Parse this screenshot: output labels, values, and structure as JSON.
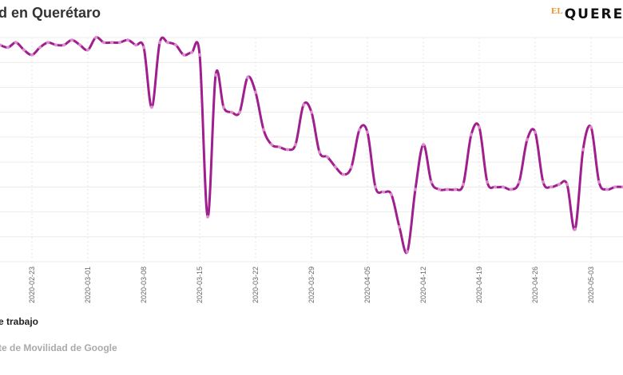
{
  "header": {
    "title": "d en Querétaro",
    "logo_prefix": "EL",
    "logo_main": "QUERE"
  },
  "legend": {
    "label": "e trabajo"
  },
  "source": {
    "text": "te de Movilidad de Google"
  },
  "colors": {
    "line": "#a01e8e",
    "point": "#e6a8dc",
    "grid": "#ececec",
    "tick": "#666666"
  },
  "chart_data": {
    "type": "line",
    "title": "d en Querétaro",
    "xlabel": "",
    "ylabel": "",
    "start_date": "2020-02-19",
    "frequency": "daily",
    "ylim": [
      -90,
      0
    ],
    "grid": true,
    "x_tick_labels": [
      "2020-02-23",
      "2020-03-01",
      "2020-03-08",
      "2020-03-15",
      "2020-03-22",
      "2020-03-29",
      "2020-04-05",
      "2020-04-12",
      "2020-04-19",
      "2020-04-26",
      "2020-05-03"
    ],
    "series": [
      {
        "name": "e trabajo",
        "values": [
          -3,
          -4,
          -2,
          -5,
          -7,
          -4,
          -2,
          -3,
          -3,
          -1,
          -3,
          -5,
          0,
          -2,
          -2,
          -2,
          -1,
          -3,
          -4,
          -28,
          -2,
          -2,
          -3,
          -7,
          -6,
          -7,
          -72,
          -15,
          -28,
          -30,
          -30,
          -16,
          -22,
          -37,
          -43,
          -44,
          -45,
          -43,
          -27,
          -30,
          -46,
          -48,
          -52,
          -55,
          -52,
          -37,
          -38,
          -60,
          -62,
          -63,
          -76,
          -86,
          -61,
          -43,
          -58,
          -61,
          -61,
          -61,
          -59,
          -39,
          -36,
          -58,
          -60,
          -60,
          -61,
          -58,
          -41,
          -38,
          -58,
          -60,
          -59,
          -59,
          -77,
          -45,
          -36,
          -58,
          -61,
          -60,
          -60
        ]
      }
    ]
  }
}
